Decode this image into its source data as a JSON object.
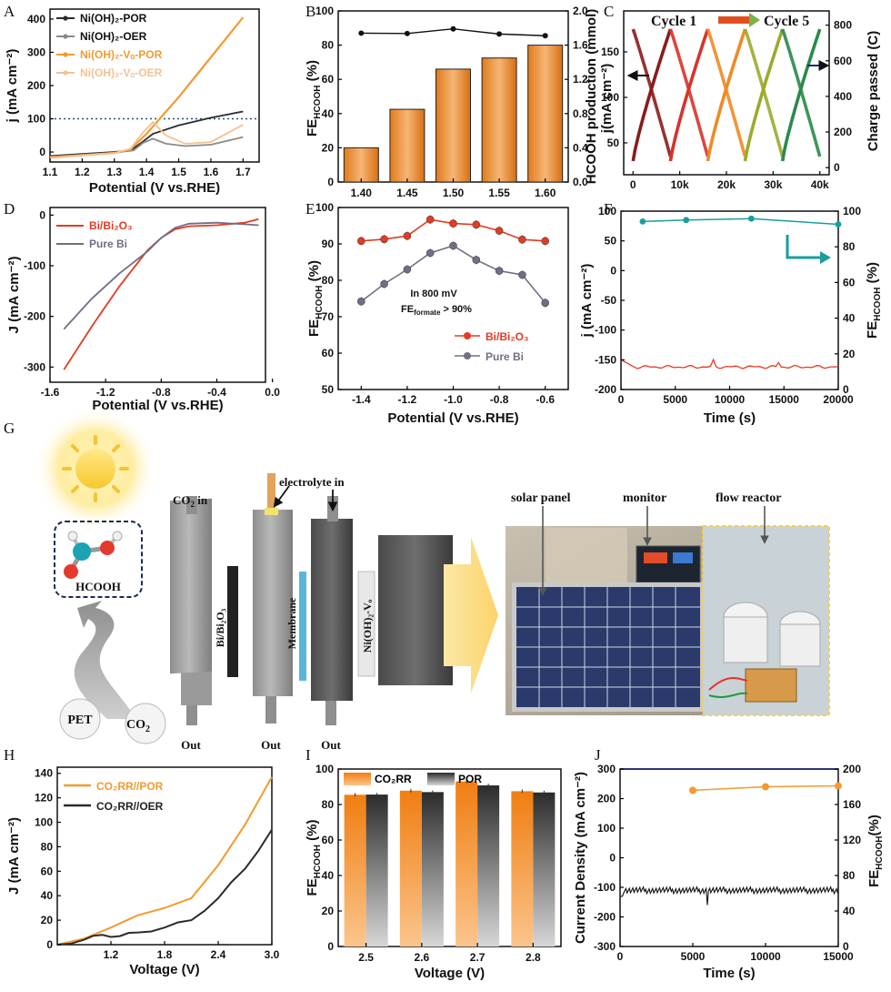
{
  "panels": {
    "A": "A",
    "B": "B",
    "C": "C",
    "D": "D",
    "E": "E",
    "F": "F",
    "G": "G",
    "H": "H",
    "I": "I",
    "J": "J"
  },
  "colors": {
    "orange": "#f39a2e",
    "light_orange": "#f7c08f",
    "dark": "#2b2b2b",
    "grey": "#8a8a8a",
    "red": "#e63a21",
    "slate": "#6f6f86",
    "teal": "#1a9e9e",
    "navy": "#1f2a6e",
    "dotted": "#1d4f8a"
  },
  "chart_data": [
    {
      "id": "A",
      "type": "line",
      "xlabel": "Potential (V vs.RHE)",
      "ylabel": "j (mA cm⁻²)",
      "xlim": [
        1.1,
        1.75
      ],
      "ylim": [
        -30,
        430
      ],
      "xticks": [
        "1.1",
        "1.2",
        "1.3",
        "1.4",
        "1.5",
        "1.6",
        "1.7"
      ],
      "yticks": [
        "0",
        "100",
        "200",
        "300",
        "400"
      ],
      "reference_line_y": 100,
      "series": [
        {
          "name": "Ni(OH)₂-POR",
          "color": "#2b2b2b",
          "points": [
            [
              1.1,
              -12
            ],
            [
              1.2,
              -6
            ],
            [
              1.3,
              0
            ],
            [
              1.35,
              5
            ],
            [
              1.38,
              25
            ],
            [
              1.42,
              55
            ],
            [
              1.5,
              80
            ],
            [
              1.6,
              103
            ],
            [
              1.7,
              122
            ]
          ]
        },
        {
          "name": "Ni(OH)₂-OER",
          "color": "#8a8a8a",
          "points": [
            [
              1.1,
              -14
            ],
            [
              1.2,
              -8
            ],
            [
              1.3,
              -2
            ],
            [
              1.36,
              5
            ],
            [
              1.39,
              28
            ],
            [
              1.42,
              40
            ],
            [
              1.46,
              25
            ],
            [
              1.52,
              18
            ],
            [
              1.6,
              22
            ],
            [
              1.7,
              45
            ]
          ]
        },
        {
          "name": "Ni(OH)₂-Vₒ-POR",
          "color": "#f39a2e",
          "points": [
            [
              1.1,
              -16
            ],
            [
              1.2,
              -10
            ],
            [
              1.3,
              -3
            ],
            [
              1.35,
              8
            ],
            [
              1.4,
              55
            ],
            [
              1.5,
              165
            ],
            [
              1.6,
              285
            ],
            [
              1.7,
              405
            ]
          ]
        },
        {
          "name": "Ni(OH)₂-Vₒ-OER",
          "color": "#f7c08f",
          "points": [
            [
              1.1,
              -18
            ],
            [
              1.2,
              -10
            ],
            [
              1.3,
              -3
            ],
            [
              1.35,
              10
            ],
            [
              1.39,
              60
            ],
            [
              1.42,
              90
            ],
            [
              1.46,
              50
            ],
            [
              1.52,
              25
            ],
            [
              1.6,
              30
            ],
            [
              1.7,
              82
            ]
          ]
        }
      ]
    },
    {
      "id": "B",
      "type": "bar",
      "ylabel": "FE",
      "ylabel_sub": "HCOOH",
      "ylabel_unit": " (%)",
      "ylabel_right": "HCOOH production (mmol)",
      "categories": [
        "1.40",
        "1.45",
        "1.50",
        "1.55",
        "1.60"
      ],
      "bar_values": [
        0.4,
        0.85,
        1.32,
        1.45,
        1.6
      ],
      "line_values": [
        87,
        86.8,
        89.5,
        86.5,
        85.5
      ],
      "ylim": [
        0,
        100
      ],
      "ylim_right": [
        0,
        2.0
      ],
      "yticks": [
        "0",
        "20",
        "40",
        "60",
        "80",
        "100"
      ],
      "yticks_right": [
        "0.0",
        "0.4",
        "0.8",
        "1.2",
        "1.6",
        "2.0"
      ]
    },
    {
      "id": "C",
      "type": "line",
      "ylabel": "j(mA cm⁻²)",
      "ylabel_right": "Charge passed (C)",
      "xlim": [
        -2000,
        42000
      ],
      "ylim": [
        15,
        195
      ],
      "ylim_right": [
        -40,
        880
      ],
      "xticks": [
        "0",
        "10k",
        "20k",
        "30k",
        "40k"
      ],
      "yticks": [
        "50",
        "100",
        "150"
      ],
      "yticks_right": [
        "0",
        "200",
        "400",
        "600",
        "800"
      ],
      "annotation_start": "Cycle 1",
      "annotation_end": "Cycle 5",
      "cycles": [
        [
          0,
          8000
        ],
        [
          8000,
          16000
        ],
        [
          16000,
          24000
        ],
        [
          24000,
          32000
        ],
        [
          32000,
          40000
        ]
      ],
      "cycle_colors": [
        "#8a1c1c",
        "#d8332a",
        "#f08a24",
        "#9caa2c",
        "#2a8a4a"
      ]
    },
    {
      "id": "D",
      "type": "line",
      "xlabel": "Potential (V vs.RHE)",
      "ylabel": "J (mA cm⁻²)",
      "xlim": [
        -1.6,
        -0.05
      ],
      "ylim": [
        -330,
        15
      ],
      "xticks": [
        "-1.6",
        "-1.2",
        "-0.8",
        "-0.4",
        "0.0"
      ],
      "yticks": [
        "-300",
        "-200",
        "-100",
        "0"
      ],
      "series": [
        {
          "name": "Bi/Bi₂O₃",
          "color": "#e63a21",
          "points": [
            [
              -1.5,
              -305
            ],
            [
              -1.3,
              -220
            ],
            [
              -1.1,
              -140
            ],
            [
              -0.9,
              -70
            ],
            [
              -0.8,
              -45
            ],
            [
              -0.7,
              -28
            ],
            [
              -0.6,
              -22
            ],
            [
              -0.4,
              -20
            ],
            [
              -0.2,
              -15
            ],
            [
              -0.1,
              -8
            ]
          ]
        },
        {
          "name": "Pure Bi",
          "color": "#6f6f86",
          "points": [
            [
              -1.5,
              -225
            ],
            [
              -1.3,
              -165
            ],
            [
              -1.1,
              -115
            ],
            [
              -0.9,
              -72
            ],
            [
              -0.8,
              -45
            ],
            [
              -0.7,
              -25
            ],
            [
              -0.6,
              -17
            ],
            [
              -0.4,
              -15
            ],
            [
              -0.2,
              -18
            ],
            [
              -0.1,
              -20
            ]
          ]
        }
      ]
    },
    {
      "id": "E",
      "type": "line",
      "xlabel": "Potential (V vs.RHE)",
      "ylabel": "FE",
      "ylabel_sub": "HCOOH",
      "ylabel_unit": " (%)",
      "xlim": [
        -1.5,
        -0.5
      ],
      "ylim": [
        50,
        100
      ],
      "xticks": [
        "-1.4",
        "-1.2",
        "-1.0",
        "-0.8",
        "-0.6"
      ],
      "yticks": [
        "50",
        "60",
        "70",
        "80",
        "90",
        "100"
      ],
      "annotation_line1": "In 800 mV",
      "annotation_line2": "FE",
      "annotation_sub": "formate",
      "annotation_tail": " > 90%",
      "series": [
        {
          "name": "Bi/Bi₂O₃",
          "color": "#e63a21",
          "x": [
            -1.4,
            -1.3,
            -1.2,
            -1.1,
            -1.0,
            -0.9,
            -0.8,
            -0.7,
            -0.6
          ],
          "y": [
            90.8,
            91.3,
            92.2,
            96.7,
            95.6,
            95.3,
            93.6,
            91.2,
            90.8
          ]
        },
        {
          "name": "Pure Bi",
          "color": "#6f6f86",
          "x": [
            -1.4,
            -1.3,
            -1.2,
            -1.1,
            -1.0,
            -0.9,
            -0.8,
            -0.7,
            -0.6
          ],
          "y": [
            74.2,
            79.0,
            83.0,
            87.5,
            89.5,
            85.6,
            82.6,
            81.5,
            73.8
          ]
        }
      ]
    },
    {
      "id": "F",
      "type": "line",
      "xlabel": "Time (s)",
      "ylabel": "j (mA cm⁻²)",
      "ylabel_right": "FE",
      "ylabel_right_sub": "HCOOH",
      "ylabel_right_unit": " (%)",
      "xlim": [
        0,
        20000
      ],
      "ylim": [
        -200,
        100
      ],
      "ylim_right": [
        0,
        100
      ],
      "xticks": [
        "0",
        "5000",
        "10000",
        "15000",
        "20000"
      ],
      "yticks": [
        "-200",
        "-150",
        "-100",
        "-50",
        "0",
        "50",
        "100"
      ],
      "yticks_right": [
        "0",
        "20",
        "40",
        "60",
        "80",
        "100"
      ],
      "fe_points": [
        [
          2000,
          94.2
        ],
        [
          6000,
          95
        ],
        [
          12000,
          95.8
        ],
        [
          20000,
          92.6
        ]
      ],
      "current": -162
    },
    {
      "id": "H",
      "type": "line",
      "xlabel": "Voltage (V)",
      "ylabel": "J (mA cm⁻²)",
      "xlim": [
        0.6,
        3.0
      ],
      "ylim": [
        0,
        145
      ],
      "xticks": [
        "1.2",
        "1.8",
        "2.4",
        "3.0"
      ],
      "yticks": [
        "0",
        "20",
        "40",
        "60",
        "80",
        "100",
        "120",
        "140"
      ],
      "series": [
        {
          "name": "CO₂RR//POR",
          "color": "#f39a2e",
          "points": [
            [
              0.6,
              0
            ],
            [
              0.9,
              5
            ],
            [
              1.2,
              14
            ],
            [
              1.5,
              24
            ],
            [
              1.8,
              30
            ],
            [
              2.1,
              38
            ],
            [
              2.4,
              65
            ],
            [
              2.7,
              98
            ],
            [
              3.0,
              137
            ]
          ]
        },
        {
          "name": "CO₂RR//OER",
          "color": "#2b2b2b",
          "points": [
            [
              0.6,
              0
            ],
            [
              0.9,
              4
            ],
            [
              1.1,
              8
            ],
            [
              1.3,
              7
            ],
            [
              1.5,
              10
            ],
            [
              1.8,
              14
            ],
            [
              2.1,
              20
            ],
            [
              2.4,
              38
            ],
            [
              2.7,
              62
            ],
            [
              3.0,
              94
            ]
          ]
        }
      ]
    },
    {
      "id": "I",
      "type": "bar",
      "xlabel": "Voltage (V)",
      "ylabel": "FE",
      "ylabel_sub": "HCOOH",
      "ylabel_unit": " (%)",
      "categories": [
        "2.5",
        "2.6",
        "2.7",
        "2.8"
      ],
      "ylim": [
        0,
        100
      ],
      "yticks": [
        "0",
        "20",
        "40",
        "60",
        "80",
        "100"
      ],
      "series": [
        {
          "name": "CO₂RR",
          "values": [
            85.5,
            87.8,
            93.0,
            87.5
          ]
        },
        {
          "name": "POR",
          "values": [
            85.6,
            87.0,
            90.8,
            86.8
          ]
        }
      ]
    },
    {
      "id": "J",
      "type": "line",
      "xlabel": "Time (s)",
      "ylabel": "Current Density (mA cm⁻²)",
      "ylabel_right": "FE",
      "ylabel_right_sub": "HCOOH",
      "ylabel_right_unit": "(%)",
      "xlim": [
        0,
        15000
      ],
      "ylim": [
        -300,
        300
      ],
      "ylim_right": [
        0,
        200
      ],
      "xticks": [
        "0",
        "5000",
        "10000",
        "15000"
      ],
      "yticks": [
        "-300",
        "-200",
        "-100",
        "0",
        "100",
        "200",
        "300"
      ],
      "yticks_right": [
        "0",
        "40",
        "80",
        "120",
        "160",
        "200"
      ],
      "fe_points": [
        [
          5000,
          176
        ],
        [
          10000,
          180
        ],
        [
          15000,
          181
        ]
      ],
      "current": -110
    }
  ],
  "schematic": {
    "hcooh": "HCOOH",
    "pet": "PET",
    "co2": "CO",
    "co2_sub": "2",
    "co2_in": "CO",
    "co2_in_sub": "2",
    "co2_in_tail": " in",
    "electrolyte_in": "electrolyte in",
    "bi_label": "Bi/Bi₂O₃",
    "membrane": "Membrane",
    "ni_label": "Ni(OH)₂-Vₒ",
    "out": "Out",
    "solar_panel": "solar panel",
    "monitor": "monitor",
    "flow_reactor": "flow reactor"
  }
}
